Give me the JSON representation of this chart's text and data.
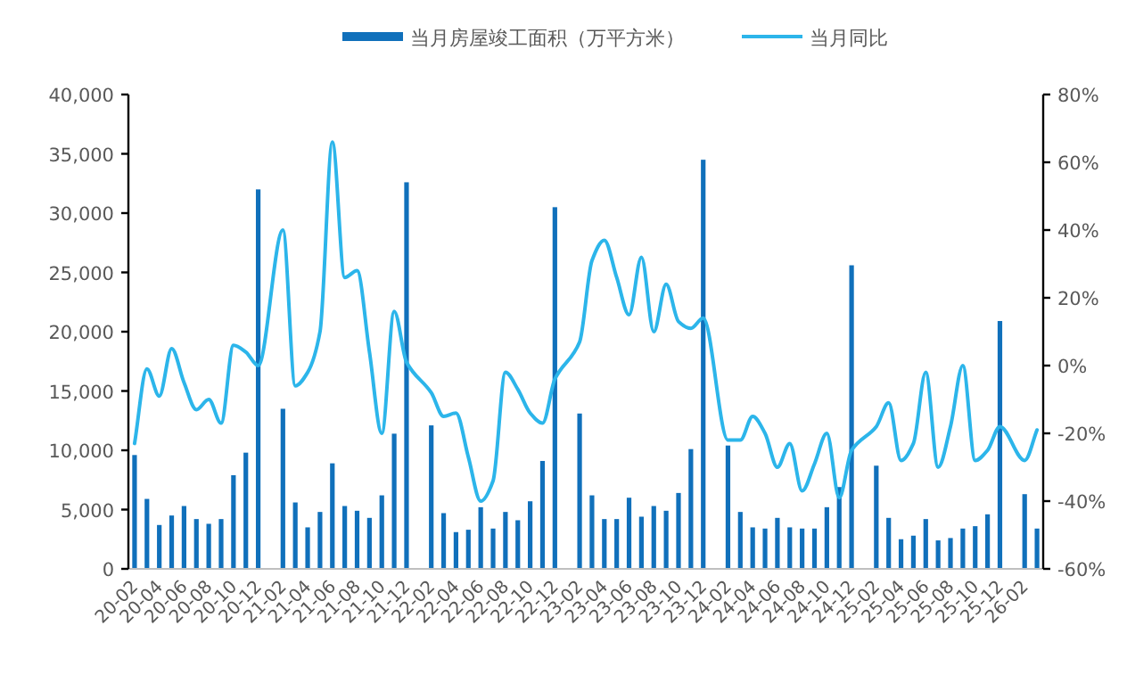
{
  "chart_data": {
    "type": "bar",
    "legend": "top",
    "categories": [
      "20-02",
      null,
      "20-04",
      null,
      "20-06",
      null,
      "20-08",
      null,
      "20-10",
      null,
      "20-12",
      null,
      "21-02",
      null,
      "21-04",
      null,
      "21-06",
      null,
      "21-08",
      null,
      "21-10",
      null,
      "21-12",
      null,
      "22-02",
      null,
      "22-04",
      null,
      "22-06",
      null,
      "22-08",
      null,
      "22-10",
      null,
      "22-12",
      null,
      "23-02",
      null,
      "23-04",
      null,
      "23-06",
      null,
      "23-08",
      null,
      "23-10",
      null,
      "23-12",
      null,
      "24-02",
      null,
      "24-04",
      null,
      "24-06",
      null,
      "24-08",
      null,
      "24-10",
      null,
      "24-12",
      null,
      "25-02",
      null,
      "25-04",
      null,
      "25-06",
      null,
      "25-08",
      null,
      "25-10",
      null,
      "25-12",
      null,
      "26-02",
      null
    ],
    "series": [
      {
        "name": "当月房屋竣工面积（万平方米）",
        "color": "#1070bb",
        "values": [
          9600,
          5900,
          3700,
          4500,
          5300,
          4200,
          3800,
          4200,
          7900,
          9800,
          32000,
          null,
          13500,
          5600,
          3500,
          4800,
          8900,
          5300,
          4900,
          4300,
          6200,
          11400,
          32600,
          null,
          12100,
          4700,
          3100,
          3300,
          5200,
          3400,
          4800,
          4100,
          5700,
          9100,
          30500,
          null,
          13100,
          6200,
          4200,
          4200,
          6000,
          4400,
          5300,
          4900,
          6400,
          10100,
          34500,
          null,
          10400,
          4800,
          3500,
          3400,
          4300,
          3500,
          3400,
          3400,
          5200,
          6900,
          25600,
          null,
          8700,
          4300,
          2500,
          2800,
          4200,
          2400,
          2600,
          3400,
          3600,
          4600,
          20900,
          null,
          6300,
          3400
        ]
      },
      {
        "name": "当月同比",
        "type": "line",
        "axis": "y2",
        "color": "#2cb5ea",
        "values": [
          -23,
          -1,
          -9,
          5,
          -5,
          -13,
          -10,
          -17,
          6,
          4,
          0,
          null,
          40,
          -6,
          -2,
          10,
          66,
          26,
          28,
          4,
          -20,
          16,
          1,
          null,
          -8,
          -15,
          -14,
          -27,
          -40,
          -34,
          -2,
          -7,
          -14,
          -17,
          -4,
          null,
          7,
          31,
          37,
          26,
          15,
          32,
          10,
          24,
          13,
          11,
          14,
          null,
          -22,
          -22,
          -15,
          -20,
          -30,
          -23,
          -37,
          -29,
          -20,
          -39,
          -25,
          null,
          -18,
          -11,
          -28,
          -23,
          -2,
          -30,
          -18,
          0,
          -28,
          -25,
          -18,
          null,
          -28,
          -19
        ]
      }
    ],
    "ylim": [
      0,
      40000
    ],
    "yticks": [
      0,
      {
        "value": 5000,
        "label": "5,000"
      },
      {
        "value": 10000,
        "label": "10,000"
      },
      {
        "value": 15000,
        "label": "15,000"
      },
      {
        "value": 20000,
        "label": "20,000"
      },
      {
        "value": 25000,
        "label": "25,000"
      },
      {
        "value": 30000,
        "label": "30,000"
      },
      {
        "value": 35000,
        "label": "35,000"
      },
      {
        "value": 40000,
        "label": "40,000"
      }
    ],
    "y2lim": [
      -60,
      80
    ],
    "y2ticks": [
      {
        "value": -60,
        "label": "-60%"
      },
      {
        "value": -40,
        "label": "-40%"
      },
      {
        "value": -20,
        "label": "-20%"
      },
      {
        "value": 0,
        "label": "0%"
      },
      {
        "value": 20,
        "label": "20%"
      },
      {
        "value": 40,
        "label": "40%"
      },
      {
        "value": 60,
        "label": "60%"
      },
      {
        "value": 80,
        "label": "80%"
      }
    ]
  }
}
